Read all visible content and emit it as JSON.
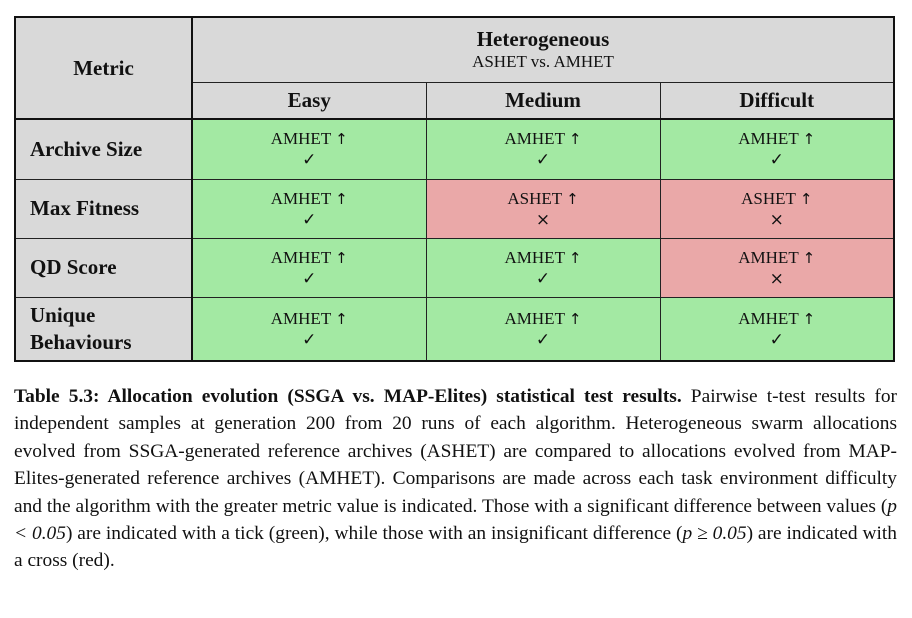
{
  "table": {
    "header": {
      "metric_label": "Metric",
      "group_title": "Heterogeneous",
      "group_subtitle": "ASHET vs. AMHET",
      "difficulties": [
        "Easy",
        "Medium",
        "Difficult"
      ]
    },
    "arrow_symbol": "↑",
    "rows": [
      {
        "metric": [
          "Archive Size"
        ],
        "cells": [
          {
            "winner": "AMHET",
            "significant": true,
            "mark": "✓",
            "color": "#a3e9a3"
          },
          {
            "winner": "AMHET",
            "significant": true,
            "mark": "✓",
            "color": "#a3e9a3"
          },
          {
            "winner": "AMHET",
            "significant": true,
            "mark": "✓",
            "color": "#a3e9a3"
          }
        ]
      },
      {
        "metric": [
          "Max Fitness"
        ],
        "cells": [
          {
            "winner": "AMHET",
            "significant": true,
            "mark": "✓",
            "color": "#a3e9a3"
          },
          {
            "winner": "ASHET",
            "significant": false,
            "mark": "×",
            "color": "#eaa8a8"
          },
          {
            "winner": "ASHET",
            "significant": false,
            "mark": "×",
            "color": "#eaa8a8"
          }
        ]
      },
      {
        "metric": [
          "QD Score"
        ],
        "cells": [
          {
            "winner": "AMHET",
            "significant": true,
            "mark": "✓",
            "color": "#a3e9a3"
          },
          {
            "winner": "AMHET",
            "significant": true,
            "mark": "✓",
            "color": "#a3e9a3"
          },
          {
            "winner": "AMHET",
            "significant": false,
            "mark": "×",
            "color": "#eaa8a8"
          }
        ]
      },
      {
        "metric": [
          "Unique",
          "Behaviours"
        ],
        "cells": [
          {
            "winner": "AMHET",
            "significant": true,
            "mark": "✓",
            "color": "#a3e9a3"
          },
          {
            "winner": "AMHET",
            "significant": true,
            "mark": "✓",
            "color": "#a3e9a3"
          },
          {
            "winner": "AMHET",
            "significant": true,
            "mark": "✓",
            "color": "#a3e9a3"
          }
        ]
      }
    ]
  },
  "caption": {
    "label": "Table 5.3: Allocation evolution (SSGA vs. MAP-Elites) statistical test results.",
    "text_1": " Pairwise t-test results for independent samples at generation 200 from 20 runs of each algorithm. Heterogeneous swarm allocations evolved from SSGA-generated reference archives (ASHET) are compared to allocations evolved from MAP-Elites-generated reference archives (AMHET). Comparisons are made across each task environment difficulty and the algorithm with the greater metric value is indicated. Those with a significant difference between values (",
    "math_1": "p < 0.05",
    "text_2": ") are indicated with a tick (green), while those with an insignificant difference (",
    "math_2": "p ≥ 0.05",
    "text_3": ") are indicated with a cross (red)."
  }
}
